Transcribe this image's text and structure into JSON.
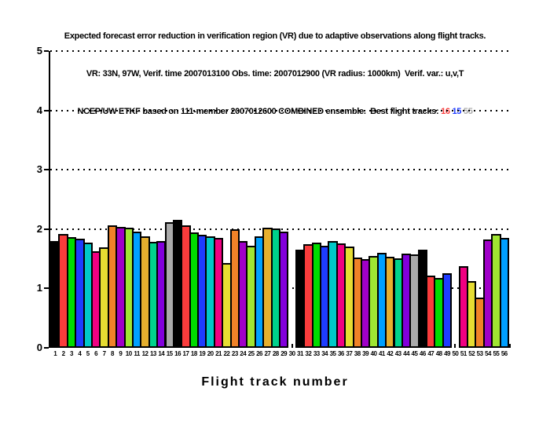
{
  "header": {
    "line1": "Expected forecast error reduction in verification region (VR) due to adaptive observations along flight tracks.",
    "line2": "VR: 33N, 97W, Verif. time 2007013100 Obs. time: 2007012900 (VR radius: 1000km)  Verif. var.: u,v,T",
    "line3_prefix": "NCEP/UW ETKF based on 111-member 2007012600 COMBINED ensemble.  Best flight tracks: "
  },
  "chart_data": {
    "type": "bar",
    "title": "Expected forecast error reduction in verification region (VR) due to adaptive observations along flight tracks.",
    "subtitle1": "VR: 33N, 97W, Verif. time 2007013100 Obs. time: 2007012900 (VR radius: 1000km)  Verif. var.: u,v,T",
    "subtitle2": "NCEP/UW ETKF based on 111-member 2007012600 COMBINED ensemble.  Best flight tracks: 16 15 55",
    "xlabel": "Flight track number",
    "ylabel": "",
    "ylim": [
      0,
      5
    ],
    "yticks": [
      0,
      1,
      2,
      3,
      4,
      5
    ],
    "grid": "horizontal dotted lines at y=1,2,3,4,5",
    "legend": "none",
    "categories": [
      "1",
      "2",
      "3",
      "4",
      "5",
      "6",
      "7",
      "8",
      "9",
      "10",
      "11",
      "12",
      "13",
      "14",
      "15",
      "16",
      "17",
      "18",
      "19",
      "20",
      "21",
      "22",
      "23",
      "24",
      "25",
      "26",
      "27",
      "28",
      "29",
      "30",
      "31",
      "32",
      "33",
      "34",
      "35",
      "36",
      "37",
      "38",
      "39",
      "40",
      "41",
      "42",
      "43",
      "44",
      "45",
      "46",
      "47",
      "48",
      "49",
      "50",
      "51",
      "52",
      "53",
      "54",
      "55",
      "56"
    ],
    "values": [
      1.78,
      1.91,
      1.85,
      1.83,
      1.76,
      1.61,
      1.68,
      2.05,
      2.03,
      2.01,
      1.95,
      1.86,
      1.77,
      1.79,
      2.1,
      2.14,
      2.05,
      1.93,
      1.89,
      1.86,
      1.84,
      1.42,
      1.98,
      1.79,
      1.7,
      1.87,
      2.01,
      2.0,
      1.94,
      0,
      1.64,
      1.73,
      1.76,
      1.71,
      1.78,
      1.74,
      1.69,
      1.51,
      1.48,
      1.54,
      1.59,
      1.52,
      1.49,
      1.57,
      1.56,
      1.64,
      1.2,
      1.17,
      1.24,
      0,
      1.36,
      1.11,
      0.84,
      1.81,
      1.9,
      1.84
    ],
    "zero_height_tracks": [
      30,
      50
    ],
    "bar_color_palette_cycle15": [
      "#000000",
      "#fa3c3c",
      "#00dc00",
      "#1e3cff",
      "#00c8c8",
      "#f00082",
      "#e6dc32",
      "#f08228",
      "#a000c8",
      "#a0e632",
      "#00a0ff",
      "#e6af2e",
      "#00d28c",
      "#8200dc",
      "#aaaaaa"
    ],
    "bar_outline_color": "#000000",
    "best_flight_tracks": [
      {
        "track": "16",
        "color": "#fa3c3c"
      },
      {
        "track": "15",
        "color": "#1e3cff"
      },
      {
        "track": "55",
        "color": "#aaaaaa"
      }
    ]
  }
}
